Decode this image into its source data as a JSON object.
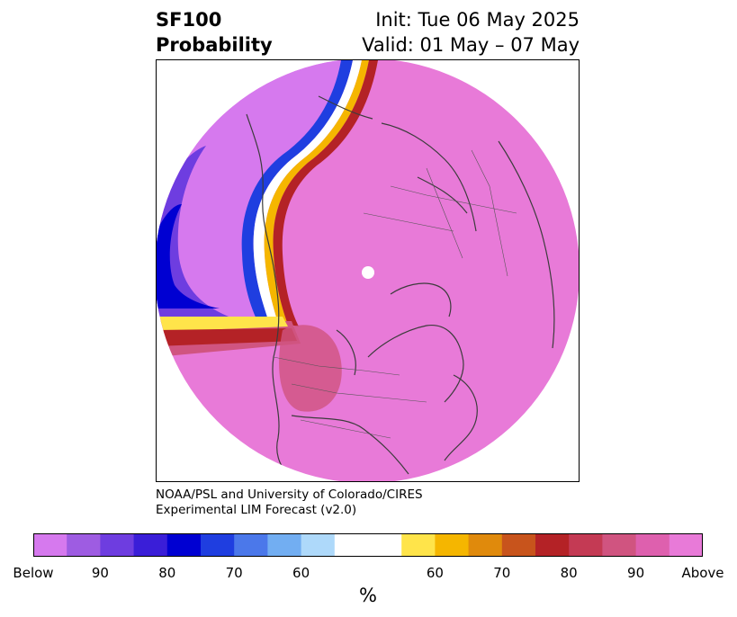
{
  "title": {
    "line1_left": "SF100",
    "line2_left": "Probability",
    "line1_right": "Init: Tue 06 May 2025",
    "line2_right": "Valid: 01 May – 07 May"
  },
  "credit": {
    "line1": "NOAA/PSL and University of Colorado/CIRES",
    "line2": "Experimental LIM Forecast (v2.0)"
  },
  "colorbar": {
    "colors": [
      "#d679ee",
      "#9e5ce2",
      "#6e3de0",
      "#3a1ed8",
      "#0000d2",
      "#1f3ee0",
      "#4b78ea",
      "#72aef2",
      "#aed9fa",
      "#ffffff",
      "#ffe44a",
      "#f5b600",
      "#e08a0c",
      "#c8541c",
      "#b42226",
      "#c43a54",
      "#d05480",
      "#de60ae",
      "#e87ad8"
    ],
    "tick_labels": [
      "Below",
      "90",
      "80",
      "70",
      "60",
      "60",
      "70",
      "80",
      "90",
      "Above"
    ],
    "unit": "%"
  },
  "map": {
    "projection": "north-polar-stereographic",
    "dominant_category": "Above",
    "below_region": "western Pacific / Eastern Asia sector"
  }
}
